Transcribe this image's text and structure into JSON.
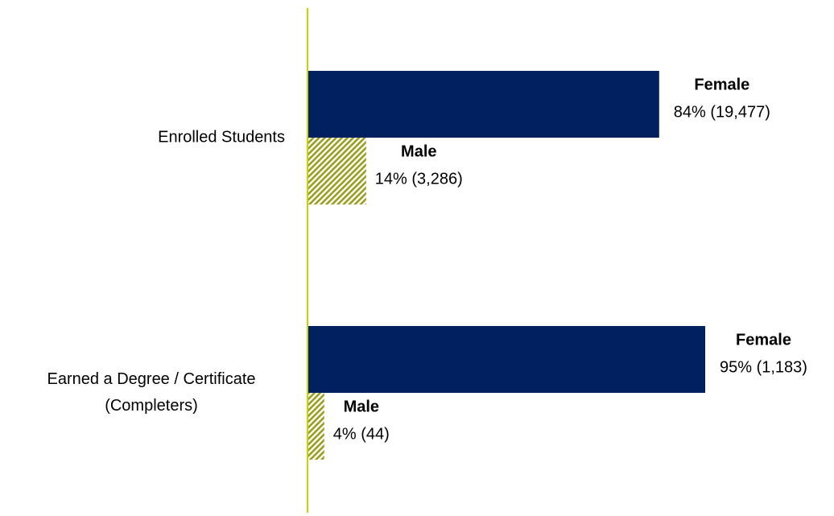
{
  "chart_data": {
    "type": "bar",
    "orientation": "horizontal",
    "categories": [
      [
        "Enrolled Students"
      ],
      [
        "Earned a Degree / Certificate",
        "(Completers)"
      ]
    ],
    "series": [
      {
        "name": "Female",
        "color": "#002060",
        "pattern": "solid",
        "values": [
          84,
          95
        ],
        "value_labels": [
          "84% (19,477)",
          "95% (1,183)"
        ]
      },
      {
        "name": "Male",
        "color": "#9c9c1e",
        "pattern": "hatch",
        "values": [
          14,
          4
        ],
        "value_labels": [
          "14% (3,286)",
          "4% (44)"
        ]
      }
    ],
    "xlim": [
      0,
      100
    ],
    "axis_color": "#c8d400"
  }
}
